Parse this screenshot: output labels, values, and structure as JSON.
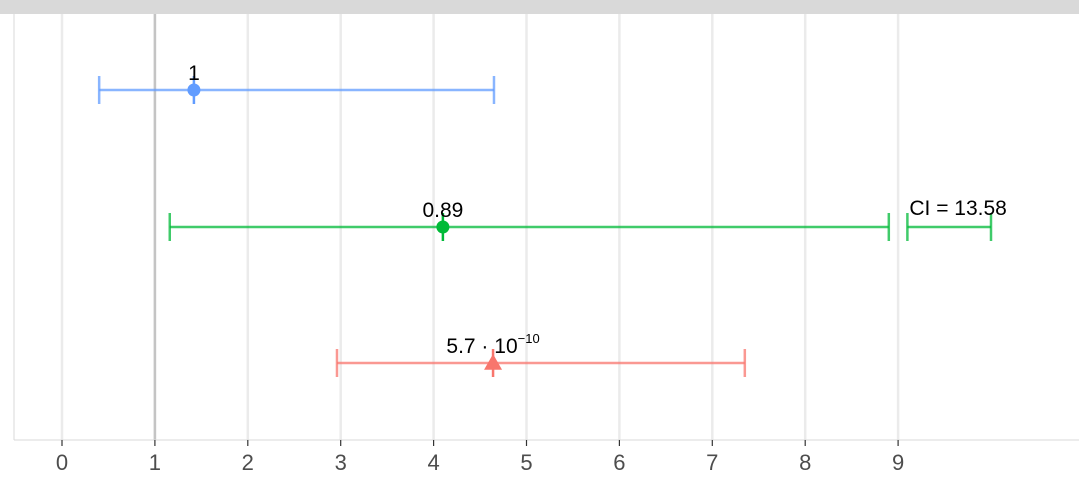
{
  "chart_data": {
    "type": "forest",
    "xlim": [
      -0.5,
      11.1
    ],
    "x_ticks": [
      0,
      1,
      2,
      3,
      4,
      5,
      6,
      7,
      8,
      9
    ],
    "reference_line": 1,
    "grid": true,
    "legend": "none",
    "rows": [
      {
        "estimate": 1.42,
        "ci_low": 0.4,
        "ci_high": 4.65,
        "marker": "circle",
        "color": "#619cff",
        "label": {
          "base": "1",
          "exp": ""
        }
      },
      {
        "estimate": 4.1,
        "ci_low": 1.16,
        "ci_high": 8.9,
        "marker": "circle",
        "color": "#00ba38",
        "label": {
          "base": "0.89",
          "exp": ""
        },
        "truncated_ci": {
          "from": 9.1,
          "to": 10.0,
          "label": "CI = 13.58"
        }
      },
      {
        "estimate": 4.64,
        "ci_low": 2.96,
        "ci_high": 7.35,
        "marker": "triangle",
        "color": "#f8766d",
        "label": {
          "base": "5.7 · 10",
          "exp": "−10"
        }
      }
    ]
  }
}
